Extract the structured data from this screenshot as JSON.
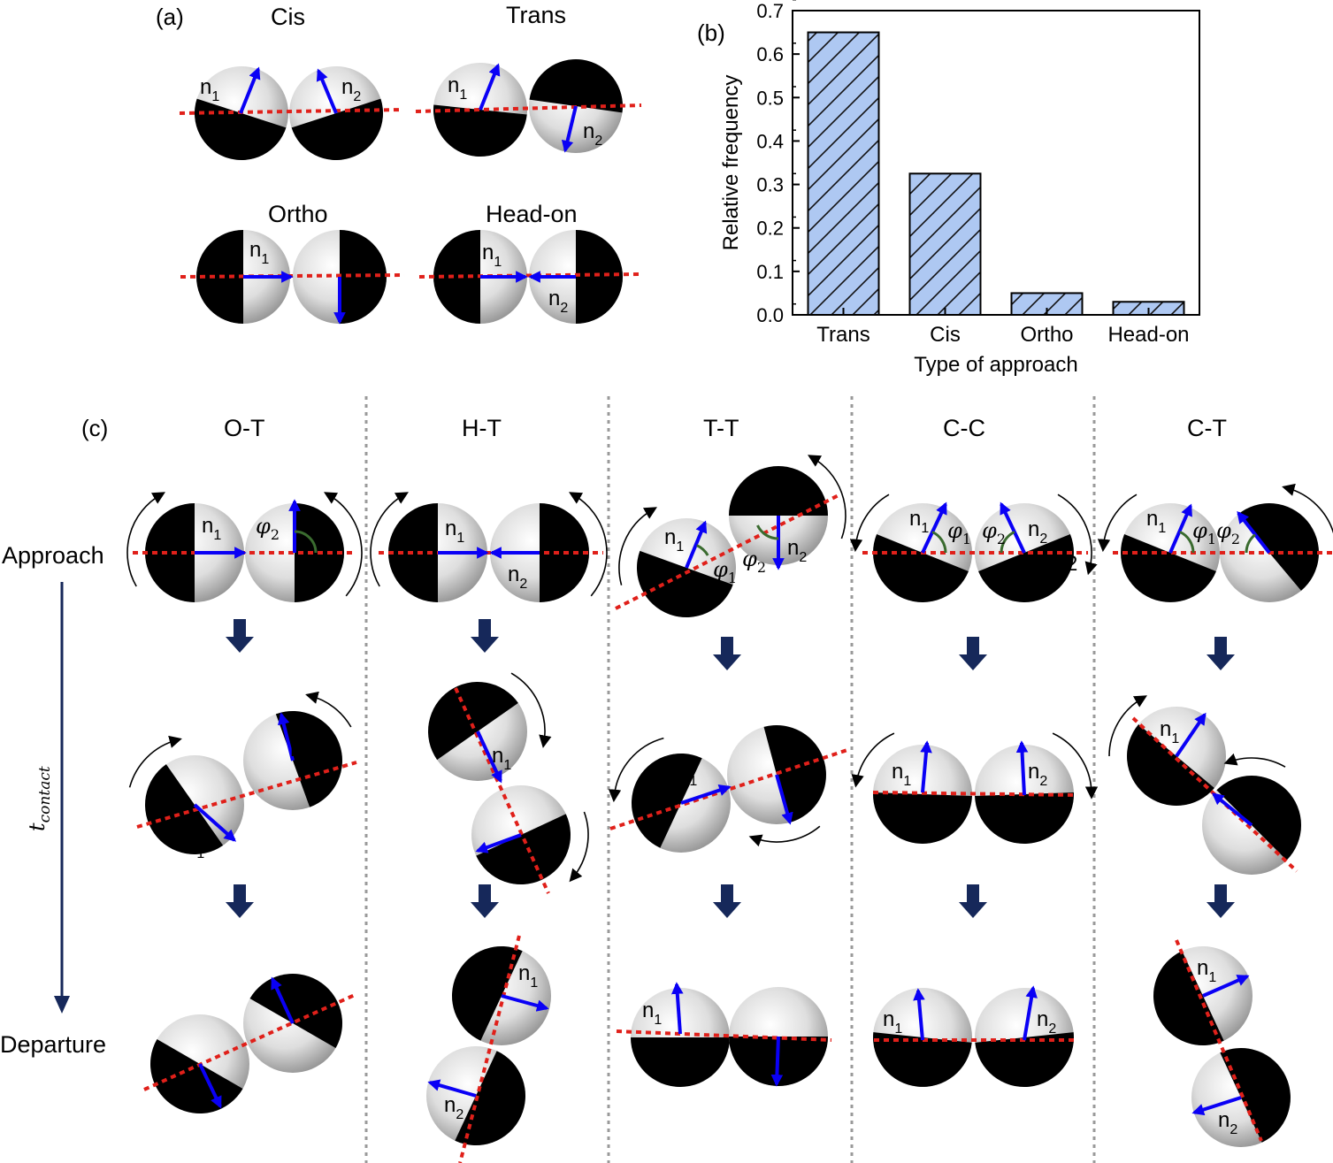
{
  "panel_a": {
    "label": "(a)",
    "titles": {
      "cis": "Cis",
      "trans": "Trans",
      "ortho": "Ortho",
      "headon": "Head-on"
    }
  },
  "panel_b": {
    "label": "(b)"
  },
  "panel_c": {
    "label": "(c)",
    "columns": [
      "O-T",
      "H-T",
      "T-T",
      "C-C",
      "C-T"
    ],
    "rows": {
      "approach": "Approach",
      "departure": "Departure"
    },
    "time_label": "t",
    "time_sub": "contact",
    "stray_digit": "2"
  },
  "symbols": {
    "n": "n",
    "phi": "φ",
    "one": "1",
    "two": "2"
  },
  "colors": {
    "bar_fill": "#aec8f2",
    "vector": "#0a00f5",
    "interface": "#e0201a",
    "arrow_dark": "#16285a",
    "arc": "#3a6b2f"
  },
  "chart_data": {
    "type": "bar",
    "categories": [
      "Trans",
      "Cis",
      "Ortho",
      "Head-on"
    ],
    "values": [
      0.65,
      0.325,
      0.05,
      0.03
    ],
    "xlabel": "Type of approach",
    "ylabel": "Relative frequency",
    "ylim": [
      0,
      0.7
    ],
    "yticks": [
      "0.0",
      "0.1",
      "0.2",
      "0.3",
      "0.4",
      "0.5",
      "0.6",
      "0.7"
    ],
    "pattern": "diagonal hatch",
    "grid": false
  }
}
